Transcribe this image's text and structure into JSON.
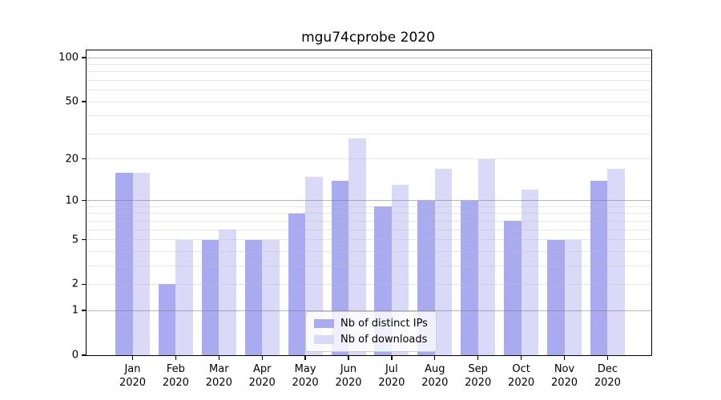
{
  "figure": {
    "title": "mgu74cprobe 2020"
  },
  "chart_data": {
    "type": "bar",
    "title": "mgu74cprobe 2020",
    "categories": [
      "Jan 2020",
      "Feb 2020",
      "Mar 2020",
      "Apr 2020",
      "May 2020",
      "Jun 2020",
      "Jul 2020",
      "Aug 2020",
      "Sep 2020",
      "Oct 2020",
      "Nov 2020",
      "Dec 2020"
    ],
    "x_tick_months": [
      "Jan",
      "Feb",
      "Mar",
      "Apr",
      "May",
      "Jun",
      "Jul",
      "Aug",
      "Sep",
      "Oct",
      "Nov",
      "Dec"
    ],
    "x_tick_year": "2020",
    "series": [
      {
        "name": "Nb of distinct IPs",
        "color": "#aaaaf0",
        "values": [
          16,
          2,
          5,
          5,
          8,
          14,
          9,
          10,
          10,
          7,
          5,
          14
        ]
      },
      {
        "name": "Nb of downloads",
        "color": "#dadaf8",
        "values": [
          16,
          5,
          6,
          5,
          15,
          28,
          13,
          17,
          20,
          12,
          5,
          17
        ]
      }
    ],
    "xlabel": "",
    "ylabel": "",
    "y_scale": "log1p",
    "ylim": [
      0,
      112
    ],
    "y_ticks": [
      0,
      1,
      2,
      5,
      10,
      20,
      50,
      100
    ],
    "major_gridlines": [
      1,
      10,
      100
    ],
    "minor_gridlines": [
      2,
      3,
      4,
      5,
      6,
      7,
      8,
      9,
      20,
      30,
      40,
      50,
      60,
      70,
      80,
      90
    ],
    "grid": true,
    "grid_above_bars": true,
    "legend_position": "lower center",
    "colors": {
      "axis": "#000000",
      "text": "#000000",
      "major_grid": "#787878",
      "minor_grid": "#bebebe",
      "background": "#ffffff"
    }
  }
}
